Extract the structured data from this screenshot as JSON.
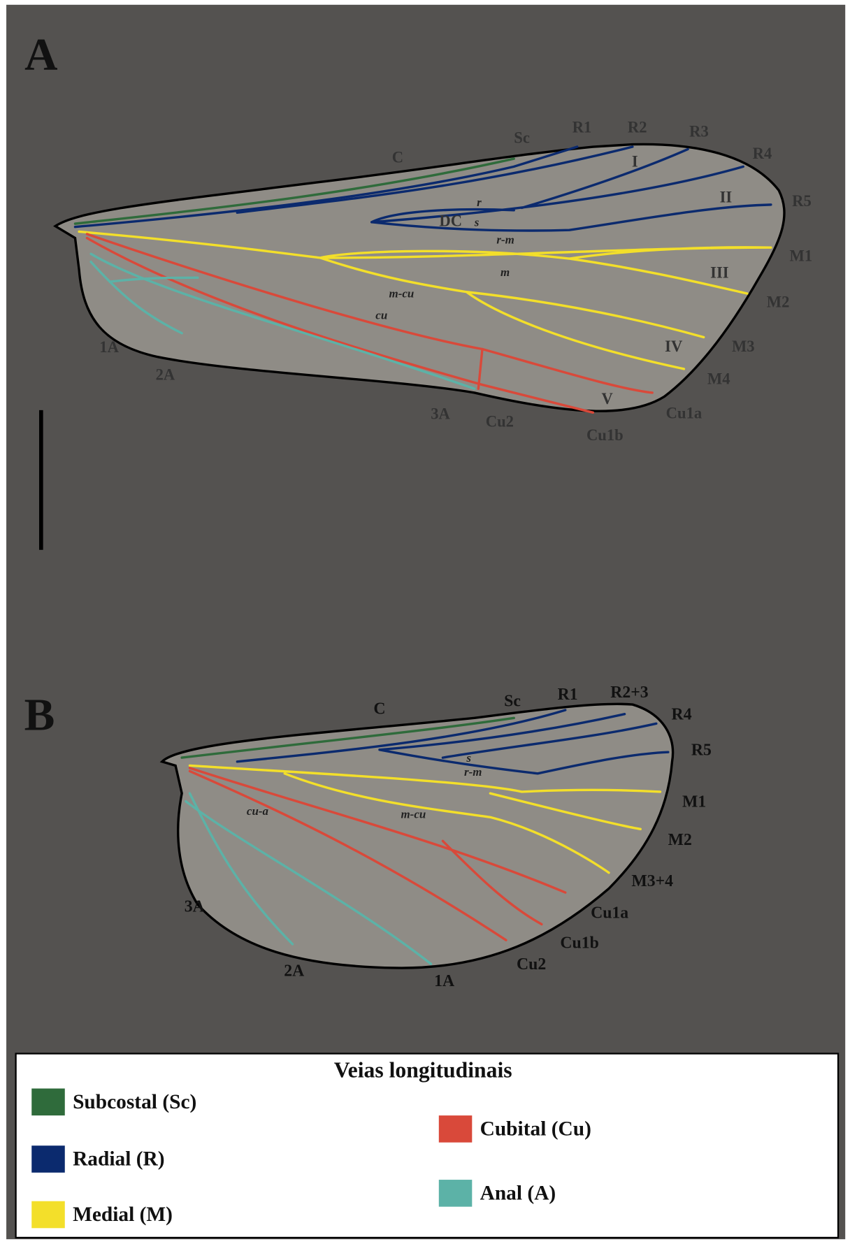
{
  "panels": [
    {
      "letter": "A",
      "veins": [
        "C",
        "Sc",
        "R1",
        "R2",
        "R3",
        "R4",
        "R5",
        "M1",
        "M2",
        "M3",
        "M4",
        "Cu1a",
        "Cu1b",
        "Cu2",
        "3A",
        "2A",
        "1A"
      ],
      "cells": [
        "I",
        "II",
        "III",
        "IV",
        "V",
        "DC"
      ],
      "crossveins": [
        "r",
        "s",
        "r-m",
        "m",
        "m-cu",
        "cu"
      ]
    },
    {
      "letter": "B",
      "veins": [
        "C",
        "Sc",
        "R1",
        "R2+3",
        "R4",
        "R5",
        "M1",
        "M2",
        "M3+4",
        "Cu1a",
        "Cu1b",
        "Cu2",
        "1A",
        "2A",
        "3A"
      ],
      "crossveins": [
        "s",
        "r-m",
        "cu-a",
        "m-cu"
      ]
    }
  ],
  "legend": {
    "title": "Veias longitudinais",
    "items": [
      {
        "label": "Subcostal (Sc)",
        "color": "#2f6b3b"
      },
      {
        "label": "Radial (R)",
        "color": "#0b2a6e"
      },
      {
        "label": "Medial (M)",
        "color": "#f3df2a"
      },
      {
        "label": "Cubital (Cu)",
        "color": "#d9493a"
      },
      {
        "label": "Anal (A)",
        "color": "#5cb2a7"
      }
    ]
  }
}
